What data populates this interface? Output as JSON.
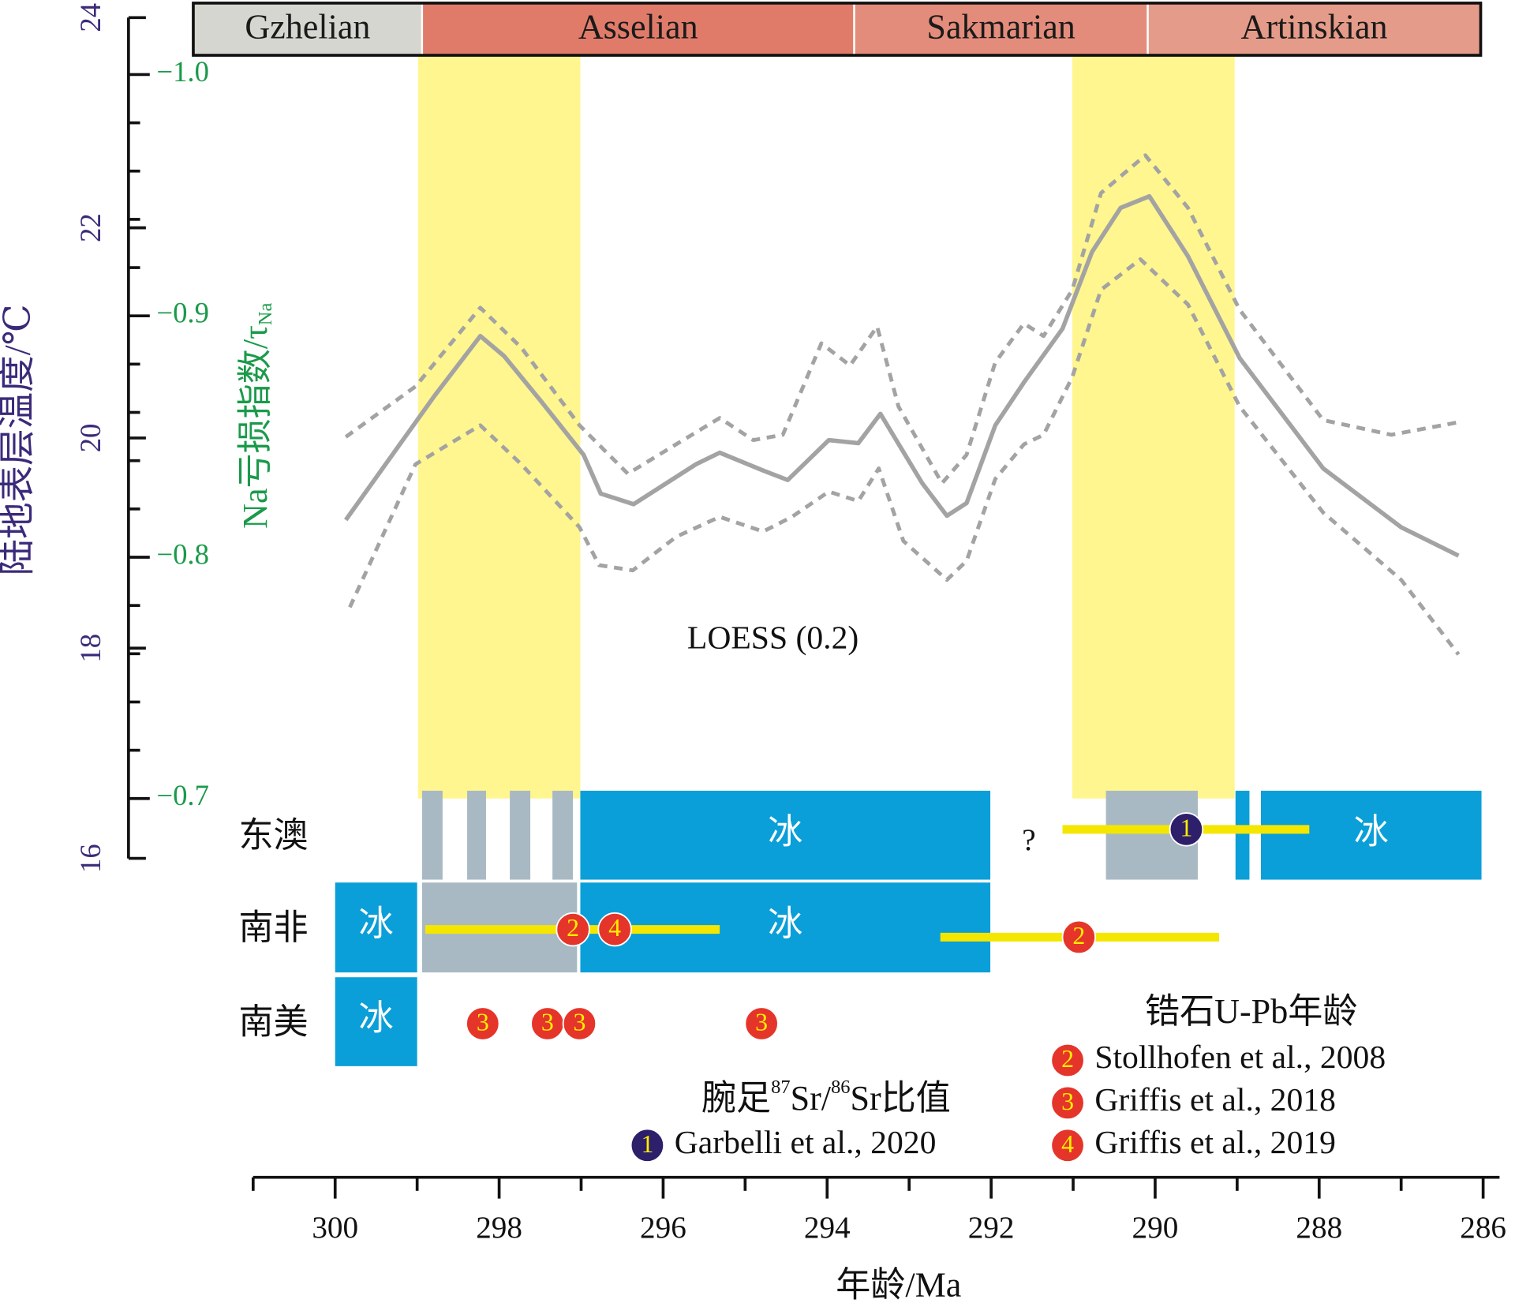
{
  "chart_data": {
    "type": "line",
    "xlabel": "年龄/Ma",
    "ylabel": "陆地表层温度/℃",
    "y2label": "Na亏损指数/τ",
    "y2label_sub": "Na",
    "annotation": "LOESS (0.2)",
    "xlim": [
      301,
      285.8
    ],
    "xticks": [
      300,
      298,
      296,
      294,
      292,
      290,
      288,
      286
    ],
    "xminor_ticks": [
      301,
      299,
      297,
      295,
      293,
      291,
      289,
      287
    ],
    "ylim": [
      16,
      24
    ],
    "yticks": [
      16,
      18,
      20,
      22,
      24
    ],
    "y2lim": [
      -0.6752,
      -1.0236
    ],
    "y2ticks": [
      {
        "value": -1.0,
        "label": "−1.0"
      },
      {
        "value": -0.9,
        "label": "−0.9"
      },
      {
        "value": -0.8,
        "label": "−0.8"
      },
      {
        "value": -0.7,
        "label": "−0.7"
      }
    ],
    "y2minor_ticks": [
      -0.98,
      -0.96,
      -0.94,
      -0.92,
      -0.88,
      -0.86,
      -0.84,
      -0.82,
      -0.78,
      -0.76,
      -0.74,
      -0.72
    ],
    "series": [
      {
        "color": "#a3a3a3",
        "dash": false,
        "x": [
          299.87,
          298.79,
          298.23,
          297.94,
          297.49,
          296.97,
          296.76,
          296.36,
          295.6,
          295.31,
          294.78,
          294.48,
          293.98,
          293.62,
          293.35,
          292.84,
          292.54,
          292.3,
          291.95,
          291.6,
          291.13,
          290.77,
          290.42,
          290.07,
          289.6,
          288.97,
          287.95,
          287.0,
          286.3
        ],
        "values": [
          19.22,
          20.4,
          20.97,
          20.78,
          20.35,
          19.84,
          19.47,
          19.37,
          19.75,
          19.86,
          19.69,
          19.6,
          19.98,
          19.95,
          20.23,
          19.57,
          19.26,
          19.38,
          20.12,
          20.53,
          21.04,
          21.77,
          22.19,
          22.3,
          21.73,
          20.76,
          19.71,
          19.15,
          18.88
        ]
      },
      {
        "color": "#a3a3a3",
        "dash": true,
        "x": [
          299.87,
          299.02,
          298.23,
          297.73,
          297.02,
          296.43,
          295.84,
          295.31,
          294.9,
          294.54,
          294.07,
          293.72,
          293.39,
          293.13,
          292.6,
          292.3,
          291.95,
          291.6,
          291.36,
          291.01,
          290.66,
          290.12,
          289.6,
          288.97,
          287.95,
          287.12,
          286.3
        ],
        "values": [
          20.01,
          20.49,
          21.24,
          20.86,
          20.12,
          19.66,
          19.94,
          20.19,
          19.98,
          20.03,
          20.9,
          20.69,
          21.06,
          20.3,
          19.57,
          19.84,
          20.72,
          21.09,
          20.97,
          21.41,
          22.33,
          22.69,
          22.19,
          21.22,
          20.17,
          20.03,
          20.15
        ]
      },
      {
        "color": "#a3a3a3",
        "dash": true,
        "x": [
          299.82,
          299.02,
          298.23,
          297.73,
          297.02,
          296.78,
          296.37,
          295.84,
          295.31,
          294.78,
          294.43,
          293.98,
          293.62,
          293.37,
          293.07,
          292.54,
          292.3,
          291.95,
          291.6,
          291.36,
          291.01,
          290.66,
          290.18,
          289.6,
          288.97,
          287.95,
          287.0,
          286.3
        ],
        "values": [
          18.39,
          19.75,
          20.12,
          19.75,
          19.15,
          18.79,
          18.74,
          19.06,
          19.25,
          19.11,
          19.25,
          19.49,
          19.4,
          19.71,
          19.02,
          18.65,
          18.83,
          19.61,
          19.94,
          20.03,
          20.58,
          21.41,
          21.7,
          21.27,
          20.3,
          19.29,
          18.65,
          17.94
        ]
      }
    ],
    "stages": [
      {
        "name": "Gzhelian",
        "start": 301.73,
        "end": 298.94,
        "color": "#d6d6d1"
      },
      {
        "name": "Asselian",
        "start": 298.94,
        "end": 293.67,
        "color": "#e07b6a"
      },
      {
        "name": "Sakmarian",
        "start": 293.67,
        "end": 290.09,
        "color": "#e38c7b"
      },
      {
        "name": "Artinskian",
        "start": 290.09,
        "end": 286.03,
        "color": "#e59b89"
      }
    ],
    "highlight_color": "#fff68f",
    "highlight_bands": [
      {
        "start": 298.99,
        "end": 297.01
      },
      {
        "start": 291.01,
        "end": 289.03
      }
    ],
    "ice_colors": {
      "ice": "#0a9fd8",
      "partial": "#a9b9c3"
    },
    "ice_rows": [
      {
        "label": "东澳",
        "intervals": [
          {
            "kind": "partial",
            "start": 298.94,
            "end": 298.69
          },
          {
            "kind": "partial",
            "start": 298.39,
            "end": 298.16
          },
          {
            "kind": "partial",
            "start": 297.87,
            "end": 297.62
          },
          {
            "kind": "partial",
            "start": 297.35,
            "end": 297.1
          },
          {
            "kind": "ice",
            "start": 297.01,
            "end": 292.01,
            "label": "冰"
          },
          {
            "kind": "partial",
            "start": 290.6,
            "end": 289.48
          },
          {
            "kind": "ice",
            "start": 289.02,
            "end": 288.85
          },
          {
            "kind": "ice",
            "start": 288.71,
            "end": 286.02,
            "label": "冰"
          }
        ],
        "note": {
          "text": "?",
          "x": 291.54
        }
      },
      {
        "label": "南非",
        "intervals": [
          {
            "kind": "ice",
            "start": 300.0,
            "end": 299.0,
            "label": "冰"
          },
          {
            "kind": "partial",
            "start": 298.94,
            "end": 297.05
          },
          {
            "kind": "ice",
            "start": 297.01,
            "end": 292.01,
            "label": "冰"
          }
        ]
      },
      {
        "label": "南美",
        "intervals": [
          {
            "kind": "ice",
            "start": 300.0,
            "end": 299.0,
            "label": "冰"
          }
        ]
      }
    ],
    "error_color": "#f5e600",
    "error_bars": [
      {
        "row": 0,
        "start": 291.13,
        "end": 288.12
      },
      {
        "row": 1,
        "start": 298.9,
        "end": 295.31
      },
      {
        "row": 1,
        "start": 292.62,
        "end": 289.22
      }
    ],
    "ages": [
      {
        "row": 0,
        "legend": 0,
        "item": 0,
        "x": 289.62
      },
      {
        "row": 1,
        "legend": 1,
        "item": 0,
        "x": 297.1
      },
      {
        "row": 1,
        "legend": 1,
        "item": 2,
        "x": 296.59
      },
      {
        "row": 1,
        "legend": 1,
        "item": 0,
        "x": 290.93
      },
      {
        "row": 2,
        "legend": 1,
        "item": 1,
        "x": 298.2
      },
      {
        "row": 2,
        "legend": 1,
        "item": 1,
        "x": 297.41
      },
      {
        "row": 2,
        "legend": 1,
        "item": 1,
        "x": 297.02
      },
      {
        "row": 2,
        "legend": 1,
        "item": 1,
        "x": 294.8
      }
    ],
    "legends": [
      {
        "title_parts": [
          {
            "text": "腕足"
          },
          {
            "text": "87",
            "sup": true
          },
          {
            "text": "Sr/"
          },
          {
            "text": "86",
            "sup": true
          },
          {
            "text": "Sr比值"
          }
        ],
        "items": [
          {
            "number": "1",
            "label": "Garbelli et al., 2020",
            "color": "#2e1f6b"
          }
        ]
      },
      {
        "title_parts": [
          {
            "text": "锆石U-Pb年龄"
          }
        ],
        "items": [
          {
            "number": "2",
            "label": "Stollhofen et al., 2008",
            "color": "#e5352a"
          },
          {
            "number": "3",
            "label": "Griffis et al., 2018",
            "color": "#e5352a"
          },
          {
            "number": "4",
            "label": "Griffis et al., 2019",
            "color": "#e5352a"
          }
        ]
      }
    ]
  }
}
